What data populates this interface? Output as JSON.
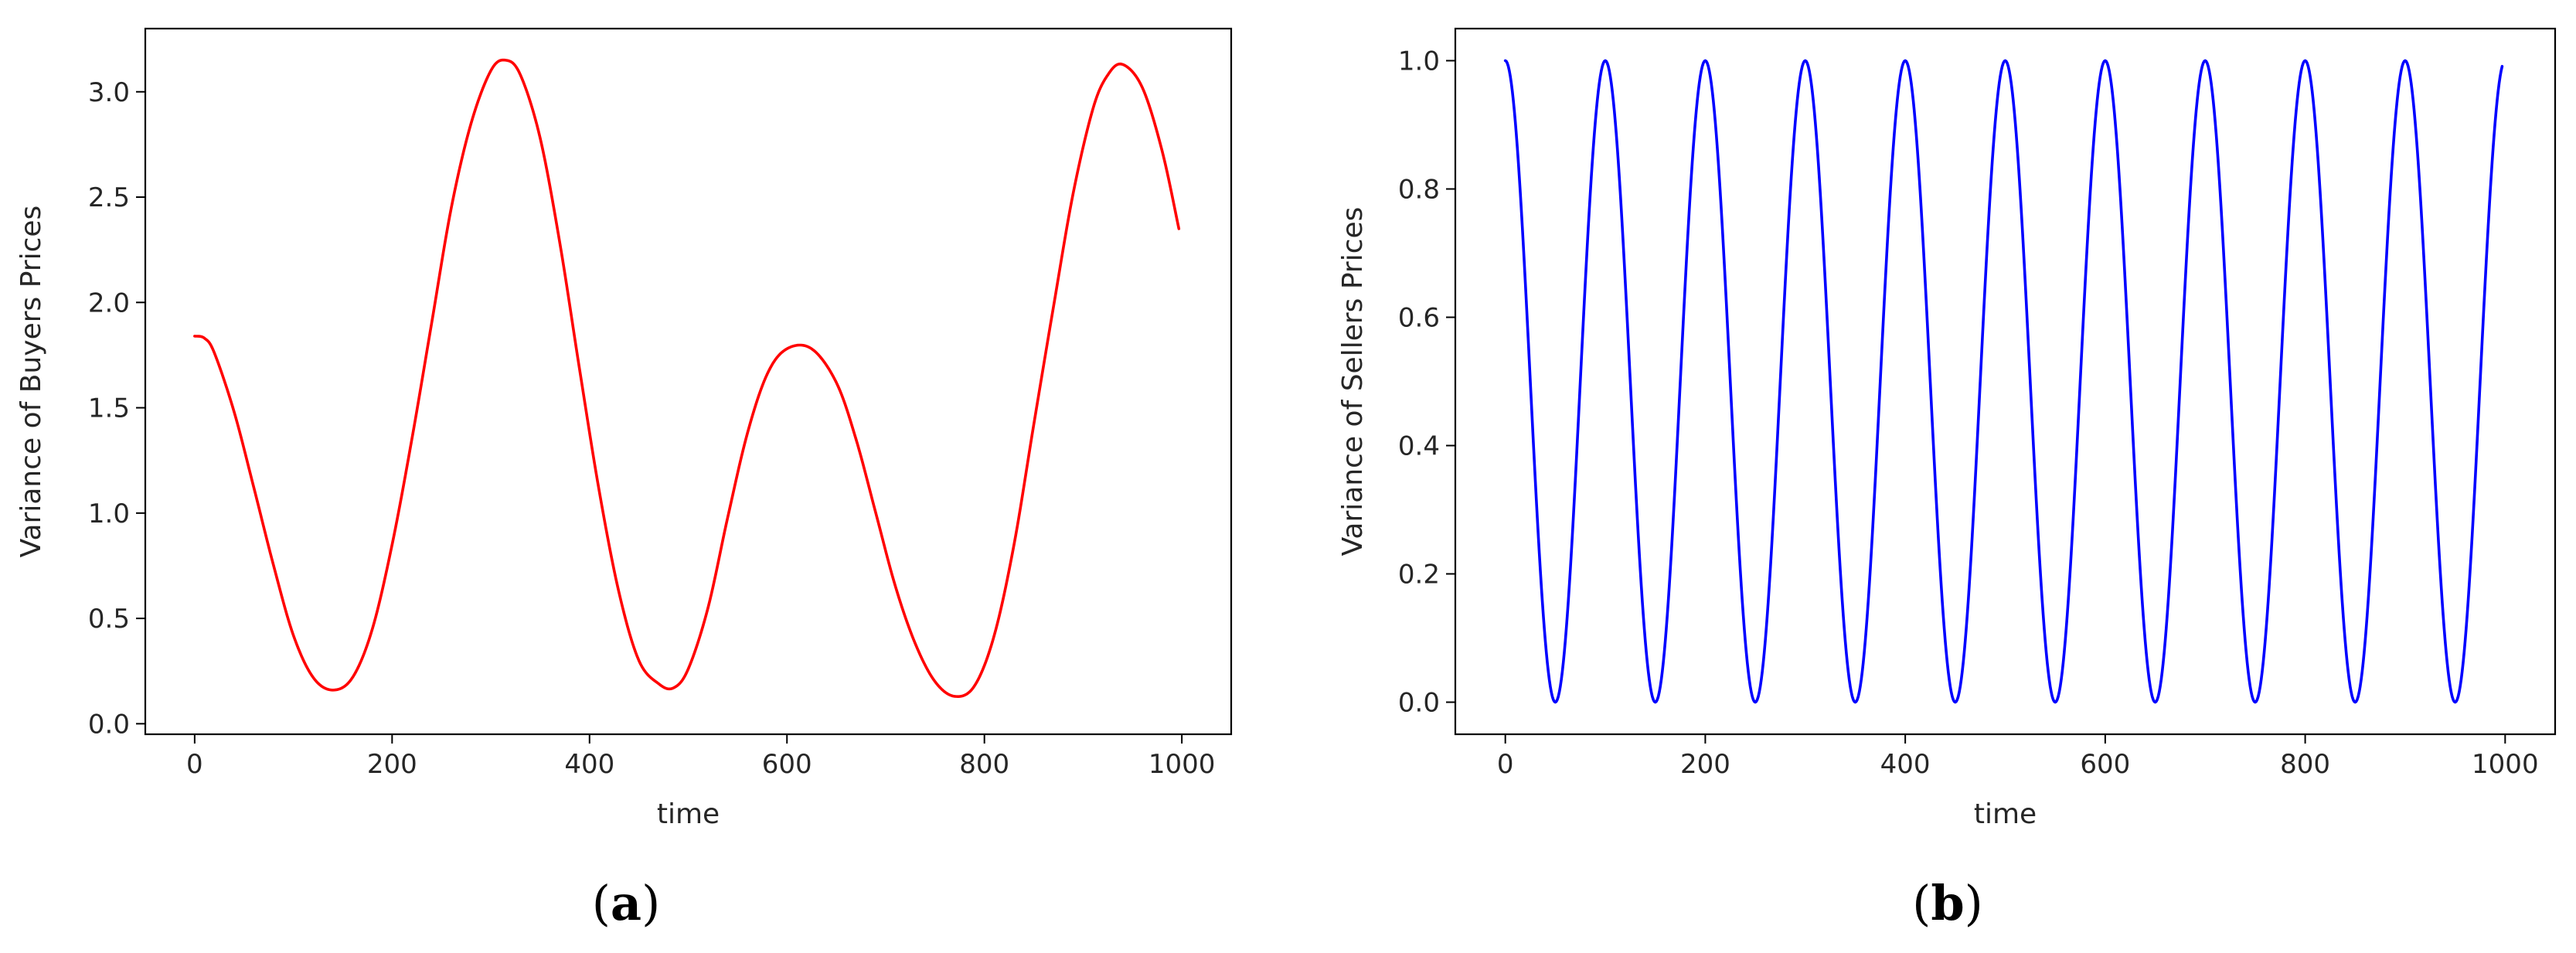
{
  "chart_data": [
    {
      "id": "a",
      "type": "line",
      "caption": {
        "open": "(",
        "letter": "a",
        "close": ")"
      },
      "xlabel": "time",
      "ylabel": "Variance of Buyers Prices",
      "xlim": [
        -50,
        1050
      ],
      "ylim": [
        -0.05,
        3.3
      ],
      "xticks": [
        0,
        200,
        400,
        600,
        800,
        1000
      ],
      "yticks": [
        0.0,
        0.5,
        1.0,
        1.5,
        2.0,
        2.5,
        3.0
      ],
      "series": [
        {
          "color": "#ff0000",
          "x": [
            0,
            10,
            20,
            40,
            60,
            80,
            100,
            120,
            140,
            160,
            180,
            200,
            220,
            240,
            260,
            280,
            300,
            315,
            330,
            350,
            370,
            390,
            410,
            430,
            450,
            470,
            485,
            500,
            520,
            540,
            560,
            580,
            600,
            625,
            650,
            670,
            690,
            710,
            730,
            750,
            770,
            790,
            810,
            830,
            850,
            870,
            890,
            910,
            925,
            940,
            960,
            980,
            997
          ],
          "y": [
            1.84,
            1.83,
            1.76,
            1.48,
            1.12,
            0.75,
            0.42,
            0.22,
            0.16,
            0.22,
            0.45,
            0.85,
            1.35,
            1.9,
            2.45,
            2.85,
            3.1,
            3.15,
            3.08,
            2.78,
            2.28,
            1.68,
            1.1,
            0.62,
            0.3,
            0.19,
            0.17,
            0.26,
            0.55,
            0.98,
            1.38,
            1.66,
            1.78,
            1.78,
            1.62,
            1.35,
            1.0,
            0.65,
            0.38,
            0.2,
            0.13,
            0.18,
            0.42,
            0.85,
            1.42,
            1.98,
            2.52,
            2.92,
            3.08,
            3.13,
            3.02,
            2.72,
            2.35
          ]
        }
      ]
    },
    {
      "id": "b",
      "type": "line",
      "caption": {
        "open": "(",
        "letter": "b",
        "close": ")"
      },
      "xlabel": "time",
      "ylabel": "Variance of Sellers Prices",
      "xlim": [
        -50,
        1050
      ],
      "ylim": [
        -0.05,
        1.05
      ],
      "xticks": [
        0,
        200,
        400,
        600,
        800,
        1000
      ],
      "yticks": [
        0.0,
        0.2,
        0.4,
        0.6,
        0.8,
        1.0
      ],
      "series": [
        {
          "color": "#0000ff",
          "function": "0.5 + 0.5*cos(2*pi*t/100)",
          "x_start": 0,
          "x_end": 997,
          "samples": 998
        }
      ]
    }
  ]
}
